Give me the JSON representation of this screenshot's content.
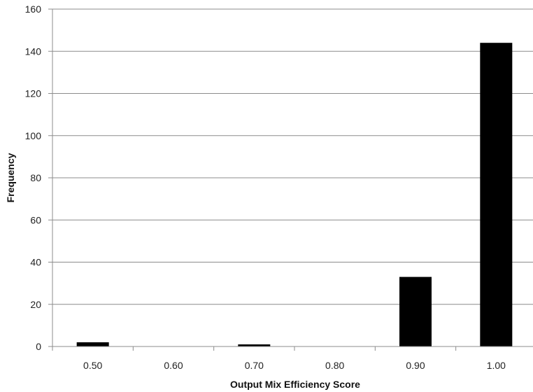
{
  "chart_data": {
    "type": "bar",
    "title": "",
    "xlabel": "Output Mix Efficiency Score",
    "ylabel": "Frequency",
    "categories": [
      "0.50",
      "0.60",
      "0.70",
      "0.80",
      "0.90",
      "1.00"
    ],
    "values": [
      2,
      0,
      1,
      0,
      33,
      144
    ],
    "ylim": [
      0,
      160
    ],
    "yticks": [
      "0",
      "20",
      "40",
      "60",
      "80",
      "100",
      "120",
      "140",
      "160"
    ],
    "grid": true,
    "legend": "none",
    "bar_color": "#000000",
    "grid_color": "#8c8c8c"
  }
}
